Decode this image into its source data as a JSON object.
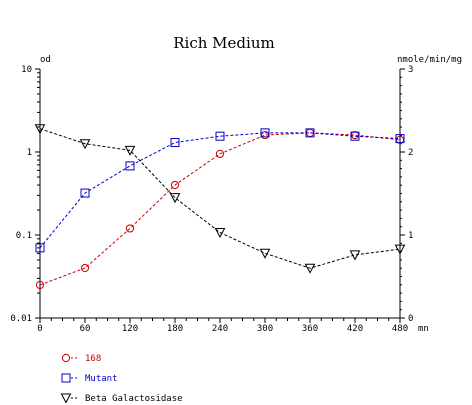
{
  "chart_data": {
    "type": "line",
    "title": "Rich Medium",
    "y_left_label": "od",
    "y_right_label": "nmole/min/mg",
    "x_unit": "mn",
    "x": [
      0,
      60,
      120,
      180,
      240,
      300,
      360,
      420,
      480
    ],
    "xlim": [
      0,
      480
    ],
    "y_left_scale": "log",
    "y_left_lim": [
      0.01,
      10
    ],
    "y_left_ticks": [
      0.01,
      0.1,
      1,
      10
    ],
    "y_left_tick_labels": [
      "0.01",
      "0.1",
      "1",
      "10"
    ],
    "y_right_scale": "linear",
    "y_right_lim": [
      0,
      3
    ],
    "y_right_ticks": [
      0,
      1,
      2,
      3
    ],
    "grid": false,
    "legend_position": "bottom-left",
    "series": [
      {
        "name": "168",
        "axis": "left",
        "marker": "circle",
        "color": "#cc0000",
        "values": [
          0.025,
          0.04,
          0.12,
          0.4,
          0.95,
          1.6,
          1.7,
          1.6,
          1.4
        ]
      },
      {
        "name": "Mutant",
        "axis": "left",
        "marker": "square",
        "color": "#0000cc",
        "values": [
          0.07,
          0.32,
          0.68,
          1.3,
          1.55,
          1.7,
          1.7,
          1.55,
          1.45
        ]
      },
      {
        "name": "Beta Galactosidase",
        "axis": "right",
        "marker": "triangle-down",
        "color": "#000000",
        "values": [
          2.28,
          2.1,
          2.02,
          1.45,
          1.03,
          0.78,
          0.6,
          0.76,
          0.83
        ]
      }
    ]
  }
}
